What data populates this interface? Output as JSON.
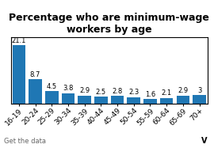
{
  "chart_data": {
    "type": "bar",
    "title": "Percentage who are minimum-wage\nworkers by age",
    "categories": [
      "16-19",
      "20-24",
      "25-29",
      "30-34",
      "35-39",
      "40-44",
      "45-49",
      "50-54",
      "55-59",
      "60-64",
      "65-69",
      "70+"
    ],
    "values": [
      21.1,
      8.7,
      4.5,
      3.8,
      2.9,
      2.5,
      2.8,
      2.3,
      1.6,
      2.1,
      2.9,
      3
    ],
    "ylim": [
      0,
      24
    ],
    "data_labels": true,
    "tick_labels": "x",
    "annotations": [
      "Get the data",
      "V"
    ]
  }
}
